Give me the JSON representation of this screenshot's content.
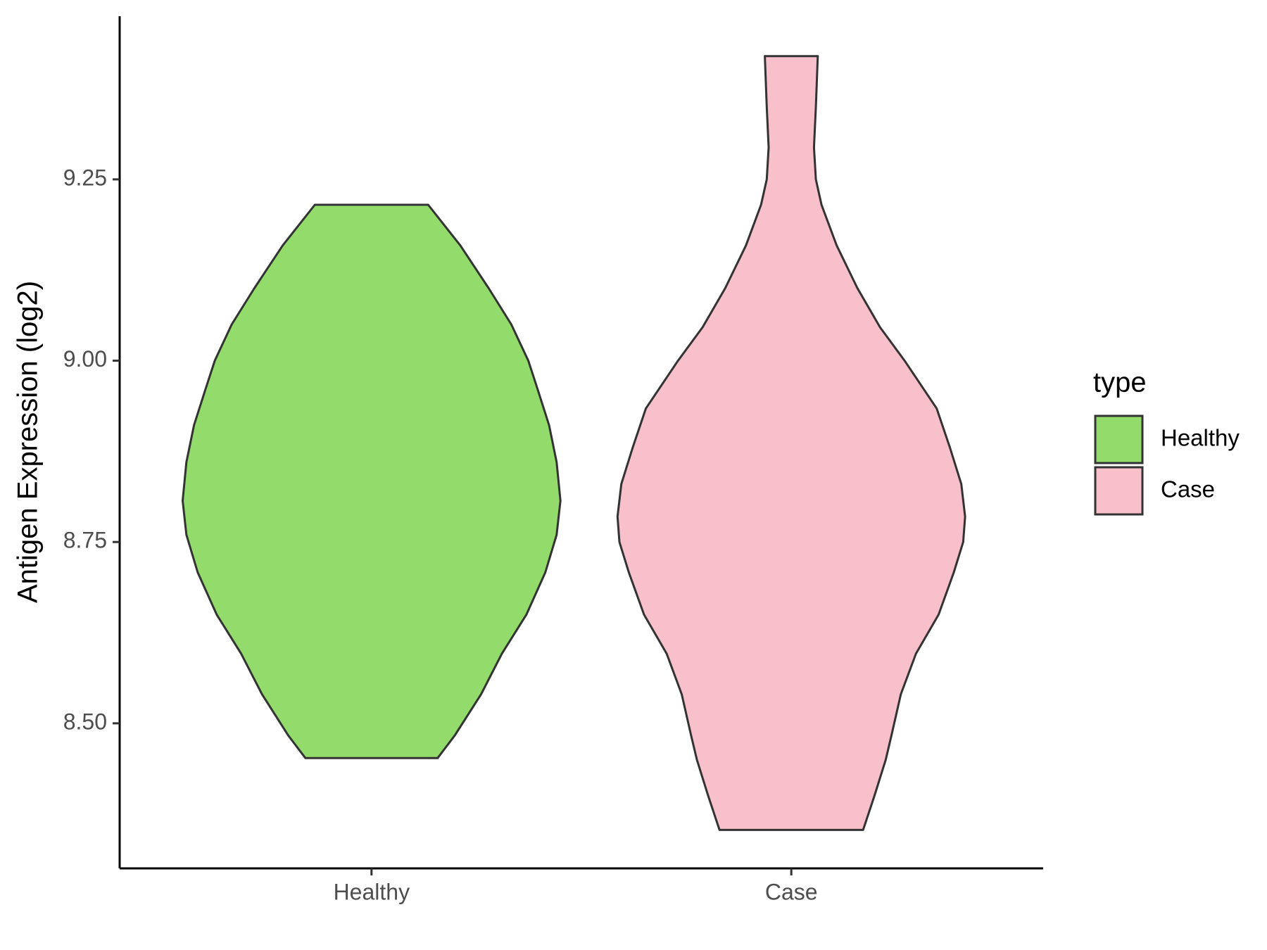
{
  "chart_data": {
    "type": "violin",
    "ylabel": "Antigen Expression (log2)",
    "categories": [
      "Healthy",
      "Case"
    ],
    "legend_title": "type",
    "legend": "right",
    "series": [
      {
        "name": "Healthy",
        "color": "#93dc6b",
        "y": [
          8.452,
          8.483,
          8.54,
          8.596,
          8.65,
          8.708,
          8.76,
          8.807,
          8.86,
          8.911,
          8.96,
          9.0,
          9.05,
          9.1,
          9.159,
          9.215
        ],
        "density": [
          0.35,
          0.44,
          0.58,
          0.69,
          0.82,
          0.92,
          0.98,
          1.0,
          0.98,
          0.94,
          0.88,
          0.83,
          0.74,
          0.62,
          0.47,
          0.3
        ]
      },
      {
        "name": "Case",
        "color": "#f7c0cb",
        "y": [
          8.353,
          8.4,
          8.45,
          8.483,
          8.54,
          8.596,
          8.65,
          8.708,
          8.75,
          8.785,
          8.83,
          8.88,
          8.934,
          9.0,
          9.046,
          9.1,
          9.159,
          9.215,
          9.25,
          9.294,
          9.35,
          9.42
        ],
        "density": [
          0.38,
          0.44,
          0.5,
          0.53,
          0.58,
          0.66,
          0.78,
          0.86,
          0.91,
          0.92,
          0.9,
          0.84,
          0.77,
          0.6,
          0.47,
          0.35,
          0.24,
          0.16,
          0.13,
          0.12,
          0.13,
          0.14
        ]
      }
    ],
    "ylim": [
      8.3,
      9.475
    ],
    "yticks": [
      {
        "value": 8.5,
        "label": "8.50"
      },
      8.75,
      {
        "value": 9.0,
        "label": "9.00"
      },
      9.25
    ],
    "grid": false
  }
}
